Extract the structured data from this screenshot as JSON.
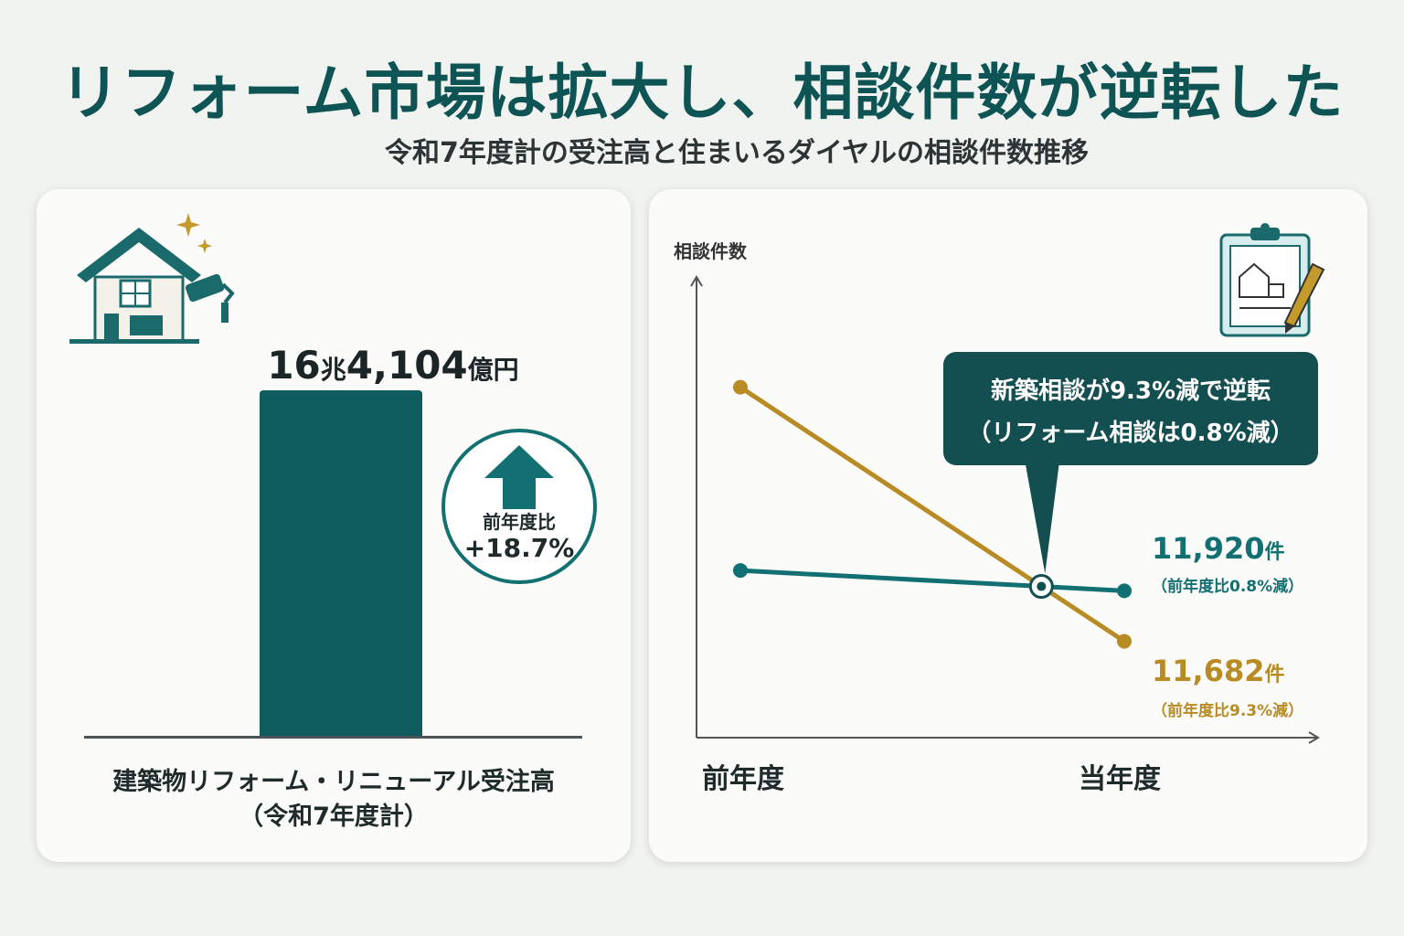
{
  "header": {
    "title": "リフォーム市場は拡大し、相談件数が逆転した",
    "subtitle": "令和7年度計の受注高と住まいるダイヤルの相談件数推移"
  },
  "left_panel": {
    "total_number_1": "16",
    "total_unit_1": "兆",
    "total_number_2": "4,104",
    "total_unit_2": "億円",
    "caption_line1": "建築物リフォーム・リニューアル受注高",
    "caption_line2": "（令和7年度計）",
    "badge_label": "前年度比",
    "badge_value": "+18.7%",
    "icons": [
      "house-icon",
      "paint-roller-icon",
      "sparkle-icon",
      "arrow-up-icon"
    ]
  },
  "right_panel": {
    "y_axis_title": "相談件数",
    "x_ticks": [
      "前年度",
      "当年度"
    ],
    "callout_line1": "新築相談が9.3%減で逆転",
    "callout_line2": "（リフォーム相談は0.8%減）",
    "reform_value": "11,920",
    "reform_unit": "件",
    "reform_change": "（前年度比0.8%減）",
    "new_build_value": "11,682",
    "new_build_unit": "件",
    "new_build_change": "（前年度比9.3%減）",
    "icons": [
      "clipboard-house-icon",
      "pencil-icon",
      "crossover-marker-icon"
    ]
  },
  "colors": {
    "teal": "#137072",
    "gold": "#b88b24",
    "dark_teal": "#0f5c5e"
  },
  "chart_data": [
    {
      "type": "bar",
      "categories": [
        "建築物リフォーム・リニューアル受注高（令和7年度計）"
      ],
      "values": [
        164104
      ],
      "value_label": "16兆4,104億円",
      "change_label": "前年度比+18.7%"
    },
    {
      "type": "line",
      "x": [
        "前年度",
        "当年度"
      ],
      "ylabel": "相談件数",
      "ylim": [
        11400,
        13400
      ],
      "series": [
        {
          "name_visible": false,
          "values": [
            12016,
            11920
          ],
          "color": "#137072"
        },
        {
          "name_visible": false,
          "values": [
            12880,
            11682
          ],
          "color": "#b88b24"
        }
      ],
      "annotation": "新築相談が9.3%減で逆転（リフォーム相談は0.8%減）"
    }
  ]
}
